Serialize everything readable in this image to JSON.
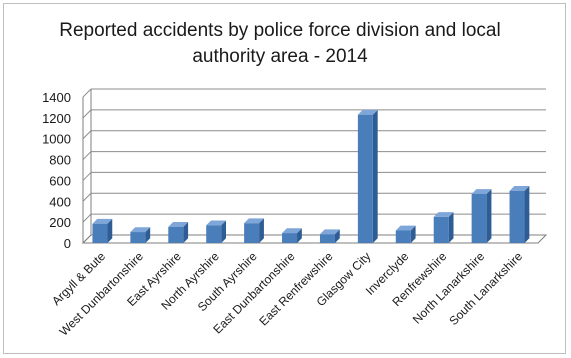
{
  "chart_data": {
    "type": "bar",
    "title": "Reported accidents by police force division and local authority area - 2014",
    "xlabel": "",
    "ylabel": "",
    "ylim": [
      0,
      1400
    ],
    "yticks": [
      0,
      200,
      400,
      600,
      800,
      1000,
      1200,
      1400
    ],
    "grid": true,
    "legend": "none",
    "style": "3d-column",
    "categories": [
      "Argyll & Bute",
      "West Dunbartonshire",
      "East Ayrshire",
      "North Ayrshire",
      "South Ayrshire",
      "East Dunbartonshire",
      "East Renfrewshire",
      "Glasgow City",
      "Inverclyde",
      "Renfrewshire",
      "North Lanarkshire",
      "South Lanarkshire"
    ],
    "values": [
      185,
      105,
      155,
      170,
      190,
      95,
      85,
      1230,
      120,
      250,
      470,
      500
    ],
    "colors": {
      "bar_front": "#4a7ebb",
      "bar_side": "#2e5c94",
      "bar_top": "#7ea6d9",
      "grid": "#8c8c8c"
    }
  }
}
